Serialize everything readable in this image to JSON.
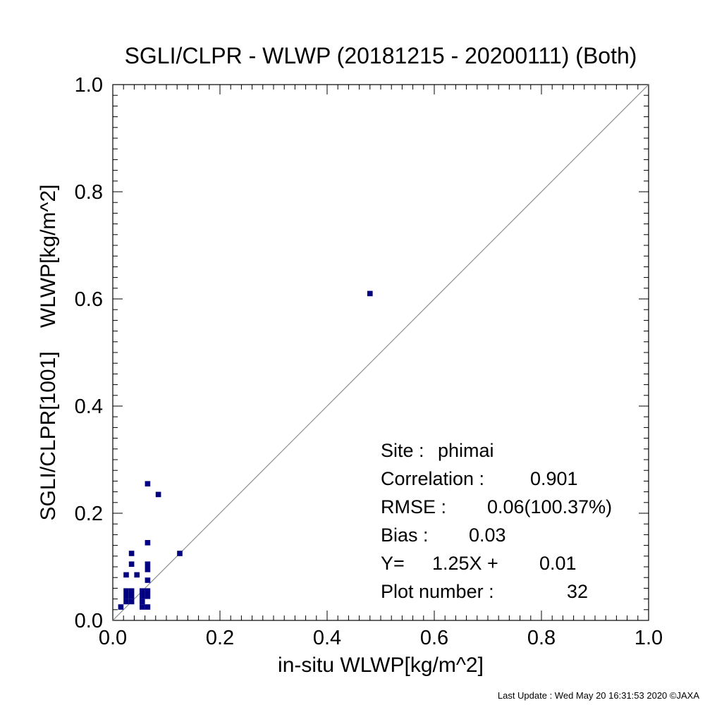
{
  "chart_data": {
    "type": "scatter",
    "title": "SGLI/CLPR - WLWP (20181215 - 20200111) (Both)",
    "xlabel": "in-situ WLWP[kg/m^2]",
    "ylabel": "SGLI/CLPR[1001]    WLWP[kg/m^2]",
    "xlim": [
      0.0,
      1.0
    ],
    "ylim": [
      0.0,
      1.0
    ],
    "xticks": [
      "0.0",
      "0.2",
      "0.4",
      "0.6",
      "0.8",
      "1.0"
    ],
    "yticks": [
      "0.0",
      "0.2",
      "0.4",
      "0.6",
      "0.8",
      "1.0"
    ],
    "reference_line": "1:1",
    "marker_color": "#000080",
    "line_color": "#808080",
    "points": [
      {
        "x": 0.48,
        "y": 0.61
      },
      {
        "x": 0.065,
        "y": 0.255
      },
      {
        "x": 0.085,
        "y": 0.235
      },
      {
        "x": 0.125,
        "y": 0.125
      },
      {
        "x": 0.065,
        "y": 0.145
      },
      {
        "x": 0.035,
        "y": 0.125
      },
      {
        "x": 0.035,
        "y": 0.105
      },
      {
        "x": 0.065,
        "y": 0.105
      },
      {
        "x": 0.065,
        "y": 0.095
      },
      {
        "x": 0.025,
        "y": 0.085
      },
      {
        "x": 0.045,
        "y": 0.085
      },
      {
        "x": 0.065,
        "y": 0.075
      },
      {
        "x": 0.025,
        "y": 0.055
      },
      {
        "x": 0.035,
        "y": 0.055
      },
      {
        "x": 0.055,
        "y": 0.055
      },
      {
        "x": 0.065,
        "y": 0.055
      },
      {
        "x": 0.025,
        "y": 0.045
      },
      {
        "x": 0.035,
        "y": 0.045
      },
      {
        "x": 0.055,
        "y": 0.045
      },
      {
        "x": 0.065,
        "y": 0.045
      },
      {
        "x": 0.025,
        "y": 0.035
      },
      {
        "x": 0.035,
        "y": 0.035
      },
      {
        "x": 0.055,
        "y": 0.035
      },
      {
        "x": 0.015,
        "y": 0.025
      },
      {
        "x": 0.055,
        "y": 0.025
      },
      {
        "x": 0.065,
        "y": 0.025
      }
    ],
    "stats": {
      "site_label": "Site :",
      "site": "phimai",
      "correlation_label": "Correlation :",
      "correlation": "0.901",
      "rmse_label": "RMSE :",
      "rmse": "0.06(100.37%)",
      "bias_label": "Bias :",
      "bias": "0.03",
      "fit_label": "Y=",
      "fit_slope": "1.25X +",
      "fit_intercept": "0.01",
      "plot_number_label": "Plot number :",
      "plot_number": "32"
    }
  },
  "footer": "Last Update : Wed May 20 16:31:53 2020  ©JAXA"
}
